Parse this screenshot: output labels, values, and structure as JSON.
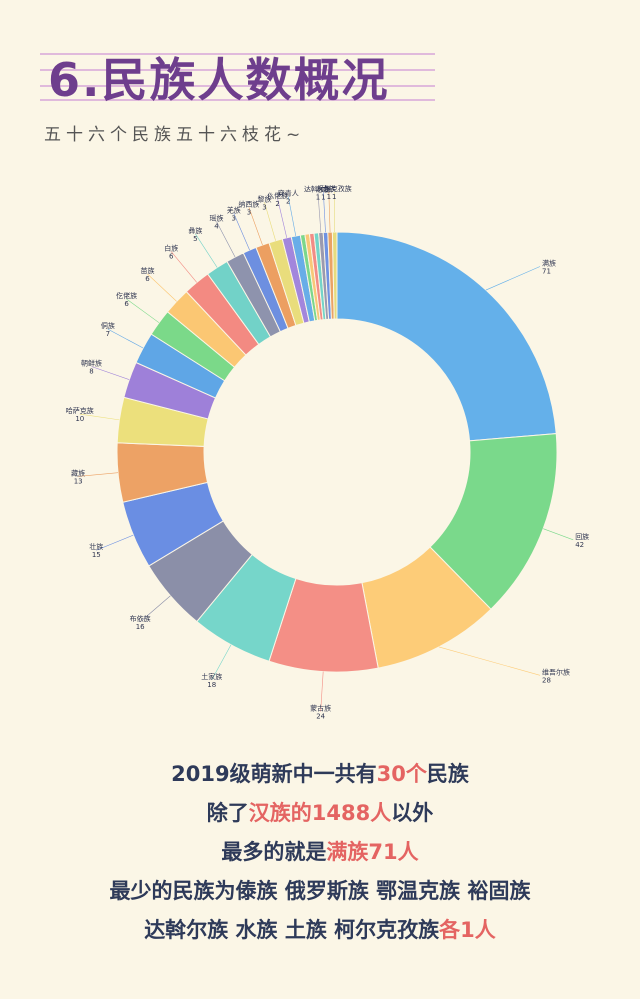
{
  "header": {
    "title": "6.民族人数概况",
    "subtitle": "五十六个民族五十六枝花~"
  },
  "chart_data": {
    "type": "pie",
    "donut": true,
    "slices": [
      {
        "name": "满族",
        "value": 71,
        "color": "#64b0ea"
      },
      {
        "name": "回族",
        "value": 42,
        "color": "#7ad98b"
      },
      {
        "name": "维吾尔族",
        "value": 28,
        "color": "#fdcc78"
      },
      {
        "name": "蒙古族",
        "value": 24,
        "color": "#f48f86"
      },
      {
        "name": "土家族",
        "value": 18,
        "color": "#76d6ca"
      },
      {
        "name": "布依族",
        "value": 16,
        "color": "#8b8fa8"
      },
      {
        "name": "壮族",
        "value": 15,
        "color": "#6a8ee3"
      },
      {
        "name": "藏族",
        "value": 13,
        "color": "#eda265"
      },
      {
        "name": "哈萨克族",
        "value": 10,
        "color": "#ece07c"
      },
      {
        "name": "朝鲜族",
        "value": 8,
        "color": "#9e80d9"
      },
      {
        "name": "侗族",
        "value": 7,
        "color": "#5fa6e6"
      },
      {
        "name": "仡佬族",
        "value": 6,
        "color": "#7bd989"
      },
      {
        "name": "苗族",
        "value": 6,
        "color": "#fbc773"
      },
      {
        "name": "白族",
        "value": 6,
        "color": "#f38a82"
      },
      {
        "name": "彝族",
        "value": 5,
        "color": "#72d2c8"
      },
      {
        "name": "瑶族",
        "value": 4,
        "color": "#8e93ad"
      },
      {
        "name": "羌族",
        "value": 3,
        "color": "#6d8fe0"
      },
      {
        "name": "纳西族",
        "value": 3,
        "color": "#ec9f61"
      },
      {
        "name": "黎族",
        "value": 3,
        "color": "#e9dd7c"
      },
      {
        "name": "仫佬族",
        "value": 2,
        "color": "#a286dc"
      },
      {
        "name": "穿青人",
        "value": 2,
        "color": "#68ade8"
      },
      {
        "name": "",
        "value": 1,
        "color": "#7bd78c"
      },
      {
        "name": "",
        "value": 1,
        "color": "#f8c878"
      },
      {
        "name": "",
        "value": 1,
        "color": "#f28c86"
      },
      {
        "name": "",
        "value": 1,
        "color": "#74d4c9"
      },
      {
        "name": "达斡尔族",
        "value": 1,
        "color": "#9a9ab0"
      },
      {
        "name": "水族",
        "value": 1,
        "color": "#6f92e2"
      },
      {
        "name": "土族",
        "value": 1,
        "color": "#eba365"
      },
      {
        "name": "柯尔克孜族",
        "value": 1,
        "color": "#e6dc7e"
      }
    ]
  },
  "conclusion": {
    "line1": {
      "a": "2019级萌新中一共有",
      "hl": "30个",
      "b": "民族"
    },
    "line2": {
      "a": "除了",
      "hl": "汉族的1488人",
      "b": "以外"
    },
    "line3": {
      "a": "最多的就是",
      "hl": "满族71人",
      "b": ""
    },
    "line4": {
      "a": "最少的民族为傣族 俄罗斯族 鄂温克族 裕固族",
      "hl": "",
      "b": ""
    },
    "line5": {
      "a": "达斡尔族 水族 土族 柯尔克孜族",
      "hl": "各1人",
      "b": ""
    }
  }
}
